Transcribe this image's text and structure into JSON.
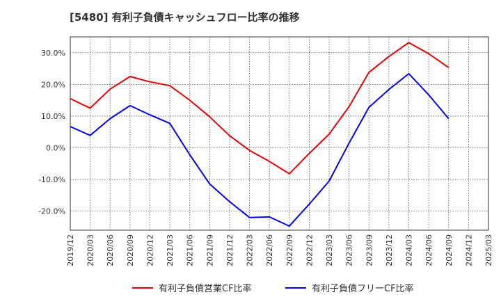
{
  "chart_data": {
    "type": "line",
    "title": "[5480]  有利子負債キャッシュフロー比率の推移",
    "xlabel": "",
    "ylabel": "",
    "x": [
      "2019/12",
      "2020/03",
      "2020/06",
      "2020/09",
      "2020/12",
      "2021/03",
      "2021/06",
      "2021/09",
      "2021/12",
      "2022/03",
      "2022/06",
      "2022/09",
      "2022/12",
      "2023/03",
      "2023/06",
      "2023/09",
      "2023/12",
      "2024/03",
      "2024/06",
      "2024/09",
      "2024/12",
      "2025/03"
    ],
    "ylim": [
      -26,
      35
    ],
    "yticks": [
      30,
      20,
      10,
      0,
      -10,
      -20
    ],
    "ytick_labels": [
      "30.0%",
      "20.0%",
      "10.0%",
      "0.0%",
      "-10.0%",
      "-20.0%"
    ],
    "grid": true,
    "legend_position": "bottom",
    "series": [
      {
        "name": "有利子負債営業CF比率",
        "color": "#e60000",
        "values": [
          15.5,
          12.5,
          18.5,
          22.5,
          20.8,
          19.6,
          15.0,
          9.8,
          3.8,
          -0.8,
          -4.3,
          -8.2,
          -1.8,
          4.3,
          13.0,
          23.8,
          28.8,
          33.2,
          29.7,
          25.3,
          null,
          null
        ]
      },
      {
        "name": "有利子負債フリーCF比率",
        "color": "#0000e6",
        "values": [
          6.7,
          3.9,
          9.2,
          13.3,
          10.4,
          7.7,
          -2.2,
          -11.4,
          -17.0,
          -22.0,
          -21.8,
          -24.7,
          -17.8,
          -10.5,
          1.5,
          12.8,
          18.4,
          23.4,
          16.7,
          9.2,
          null,
          null
        ]
      }
    ]
  }
}
